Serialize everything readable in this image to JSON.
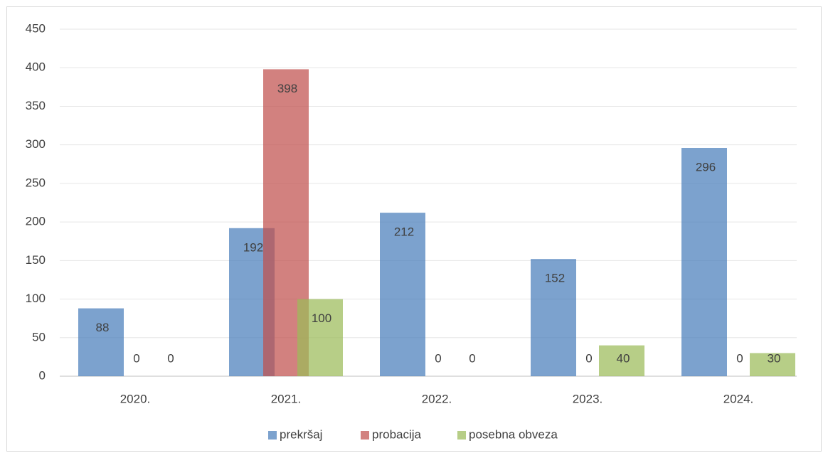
{
  "chart_data": {
    "type": "bar",
    "categories": [
      "2020.",
      "2021.",
      "2022.",
      "2023.",
      "2024."
    ],
    "series": [
      {
        "name": "prekršaj",
        "color": "#4a7ebb",
        "values": [
          88,
          192,
          212,
          152,
          296
        ]
      },
      {
        "name": "probacija",
        "color": "#c0504d",
        "values": [
          0,
          398,
          0,
          0,
          0
        ]
      },
      {
        "name": "posebna obveza",
        "color": "#9bbb59",
        "values": [
          0,
          100,
          0,
          40,
          30
        ]
      }
    ],
    "ylim": [
      0,
      450
    ],
    "yticks": [
      0,
      50,
      100,
      150,
      200,
      250,
      300,
      350,
      400,
      450
    ],
    "grid": true,
    "legend": "bottom"
  }
}
